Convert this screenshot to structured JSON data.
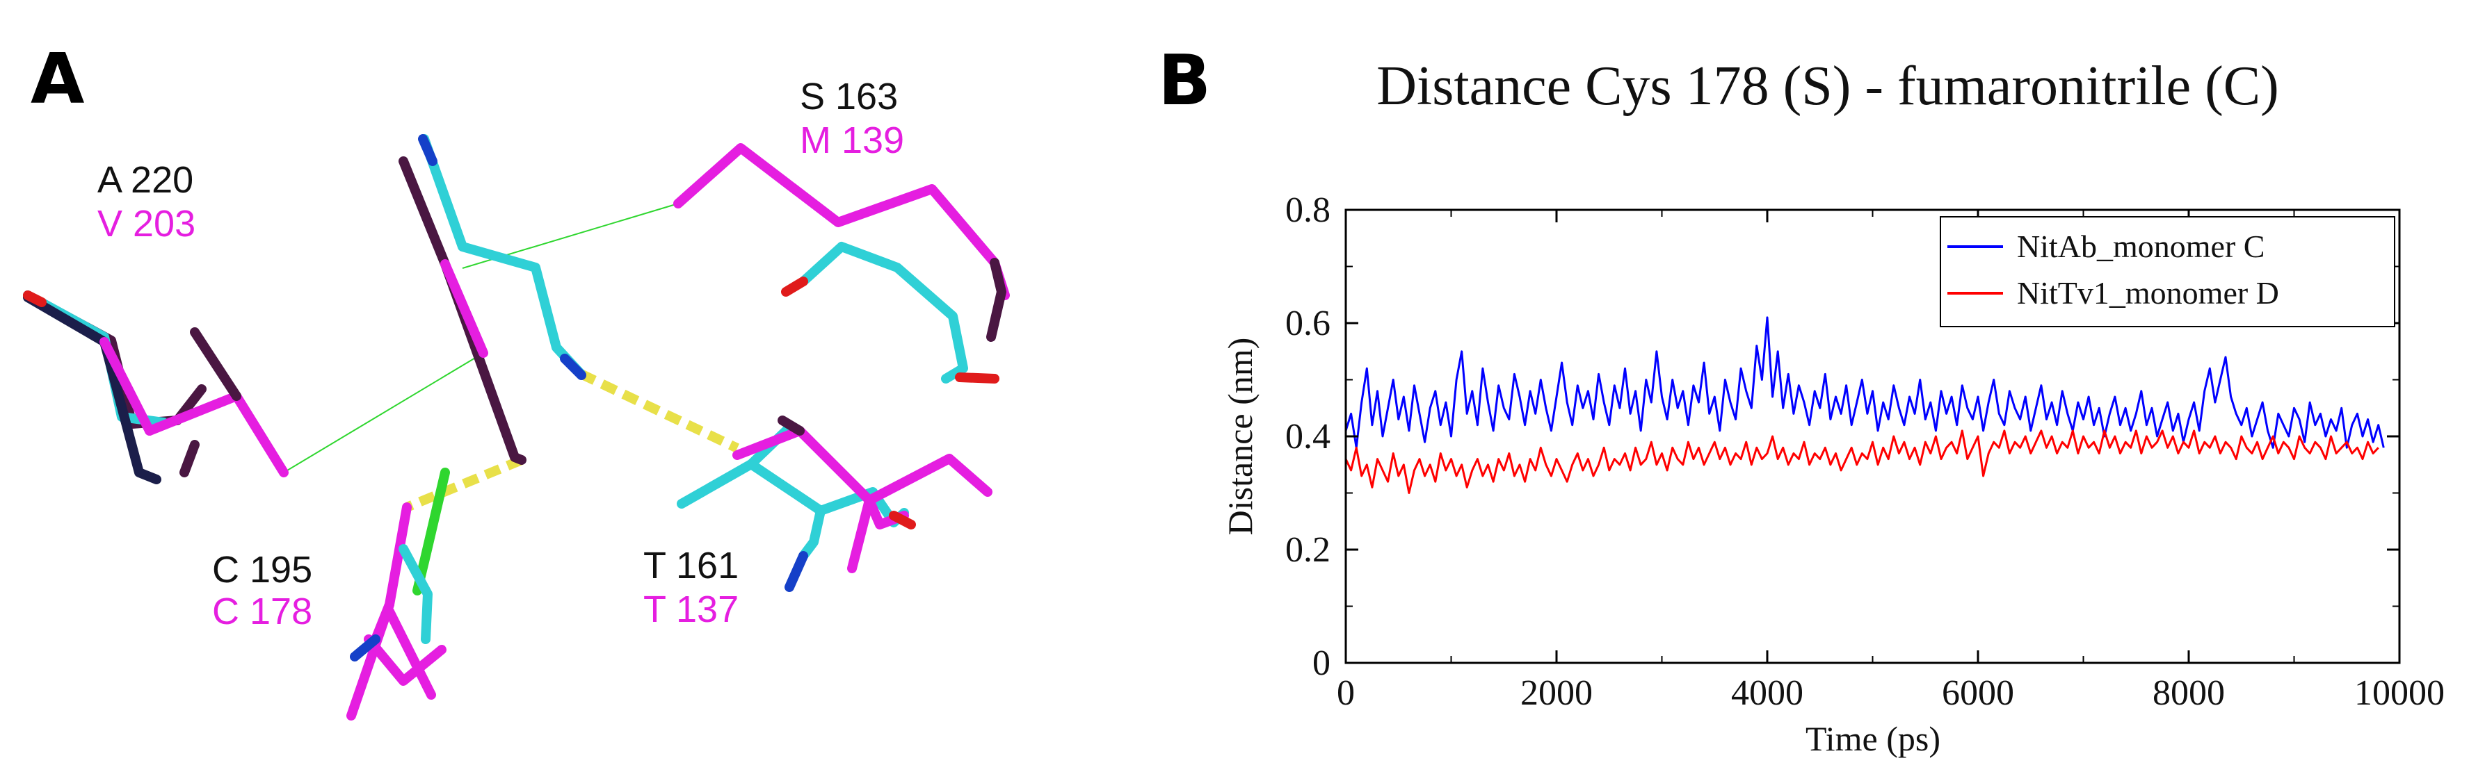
{
  "panelA": {
    "letter": "A",
    "residues": [
      {
        "primary": "A 220",
        "secondary": "V 203"
      },
      {
        "primary": "S 163",
        "secondary": "M 139"
      },
      {
        "primary": "C 195",
        "secondary": "C 178"
      },
      {
        "primary": "T 161",
        "secondary": "T 137"
      }
    ]
  },
  "panelB": {
    "letter": "B"
  },
  "colors": {
    "cyan": "#2fd0d6",
    "magenta": "#e51ee0",
    "darkPurple": "#4a1742",
    "red": "#e01b1b",
    "blue": "#1540c8",
    "green": "#2fd62f",
    "yellow": "#e8e049",
    "series1": "#0000ff",
    "series2": "#ff0000"
  },
  "chart_data": {
    "type": "line",
    "title": "Distance Cys 178 (S) - fumaronitrile (C)",
    "xlabel": "Time (ps)",
    "ylabel": "Distance  (nm)",
    "xlim": [
      0,
      10000
    ],
    "ylim": [
      0,
      0.8
    ],
    "xticks": [
      0,
      2000,
      4000,
      6000,
      8000,
      10000
    ],
    "yticks": [
      0,
      0.2,
      0.4,
      0.6,
      0.8
    ],
    "xtick_labels": [
      "0",
      "2000",
      "4000",
      "6000",
      "8000",
      "10000"
    ],
    "ytick_labels": [
      "0",
      "0.2",
      "0.4",
      "0.6",
      "0.8"
    ],
    "grid": false,
    "legend_position": "top-right",
    "series": [
      {
        "name": "NitAb_monomer C",
        "color": "#0000ff",
        "step": 50,
        "values": [
          0.41,
          0.44,
          0.38,
          0.46,
          0.52,
          0.42,
          0.48,
          0.4,
          0.45,
          0.5,
          0.43,
          0.47,
          0.41,
          0.49,
          0.44,
          0.39,
          0.45,
          0.48,
          0.42,
          0.46,
          0.4,
          0.5,
          0.55,
          0.44,
          0.48,
          0.42,
          0.52,
          0.46,
          0.41,
          0.49,
          0.45,
          0.43,
          0.51,
          0.47,
          0.42,
          0.48,
          0.44,
          0.5,
          0.45,
          0.41,
          0.47,
          0.53,
          0.46,
          0.42,
          0.49,
          0.45,
          0.48,
          0.43,
          0.51,
          0.46,
          0.42,
          0.49,
          0.45,
          0.52,
          0.44,
          0.48,
          0.41,
          0.5,
          0.46,
          0.55,
          0.47,
          0.43,
          0.5,
          0.45,
          0.48,
          0.42,
          0.49,
          0.46,
          0.53,
          0.44,
          0.47,
          0.41,
          0.5,
          0.46,
          0.43,
          0.52,
          0.48,
          0.45,
          0.56,
          0.5,
          0.61,
          0.47,
          0.55,
          0.45,
          0.51,
          0.44,
          0.49,
          0.46,
          0.42,
          0.48,
          0.45,
          0.51,
          0.43,
          0.47,
          0.44,
          0.49,
          0.42,
          0.46,
          0.5,
          0.44,
          0.48,
          0.41,
          0.46,
          0.43,
          0.49,
          0.45,
          0.42,
          0.47,
          0.44,
          0.5,
          0.43,
          0.46,
          0.41,
          0.48,
          0.44,
          0.47,
          0.42,
          0.49,
          0.45,
          0.43,
          0.47,
          0.41,
          0.46,
          0.5,
          0.44,
          0.42,
          0.48,
          0.45,
          0.43,
          0.47,
          0.41,
          0.45,
          0.49,
          0.43,
          0.46,
          0.42,
          0.48,
          0.44,
          0.41,
          0.46,
          0.43,
          0.47,
          0.42,
          0.45,
          0.4,
          0.44,
          0.47,
          0.42,
          0.45,
          0.41,
          0.44,
          0.48,
          0.42,
          0.45,
          0.4,
          0.43,
          0.46,
          0.41,
          0.44,
          0.39,
          0.43,
          0.46,
          0.41,
          0.48,
          0.52,
          0.46,
          0.5,
          0.54,
          0.47,
          0.44,
          0.42,
          0.45,
          0.4,
          0.43,
          0.46,
          0.41,
          0.38,
          0.44,
          0.42,
          0.4,
          0.45,
          0.43,
          0.39,
          0.46,
          0.42,
          0.44,
          0.4,
          0.43,
          0.41,
          0.45,
          0.38,
          0.42,
          0.44,
          0.4,
          0.43,
          0.39,
          0.42,
          0.38
        ]
      },
      {
        "name": "NitTv1_monomer D",
        "color": "#ff0000",
        "step": 50,
        "values": [
          0.36,
          0.34,
          0.38,
          0.33,
          0.35,
          0.31,
          0.36,
          0.34,
          0.32,
          0.37,
          0.33,
          0.35,
          0.3,
          0.34,
          0.36,
          0.33,
          0.35,
          0.32,
          0.37,
          0.34,
          0.36,
          0.33,
          0.35,
          0.31,
          0.34,
          0.36,
          0.33,
          0.35,
          0.32,
          0.36,
          0.34,
          0.37,
          0.33,
          0.35,
          0.32,
          0.36,
          0.34,
          0.38,
          0.35,
          0.33,
          0.36,
          0.34,
          0.32,
          0.35,
          0.37,
          0.34,
          0.36,
          0.33,
          0.35,
          0.38,
          0.34,
          0.36,
          0.35,
          0.37,
          0.34,
          0.38,
          0.35,
          0.36,
          0.39,
          0.35,
          0.37,
          0.34,
          0.38,
          0.36,
          0.35,
          0.39,
          0.36,
          0.38,
          0.35,
          0.37,
          0.39,
          0.36,
          0.38,
          0.35,
          0.37,
          0.36,
          0.39,
          0.35,
          0.38,
          0.36,
          0.37,
          0.4,
          0.36,
          0.38,
          0.35,
          0.37,
          0.36,
          0.39,
          0.35,
          0.37,
          0.36,
          0.38,
          0.35,
          0.37,
          0.34,
          0.36,
          0.38,
          0.35,
          0.37,
          0.36,
          0.39,
          0.35,
          0.38,
          0.36,
          0.4,
          0.37,
          0.39,
          0.36,
          0.38,
          0.35,
          0.39,
          0.37,
          0.4,
          0.36,
          0.38,
          0.39,
          0.37,
          0.41,
          0.36,
          0.38,
          0.4,
          0.33,
          0.37,
          0.39,
          0.38,
          0.41,
          0.37,
          0.39,
          0.38,
          0.4,
          0.37,
          0.39,
          0.41,
          0.38,
          0.4,
          0.37,
          0.39,
          0.38,
          0.41,
          0.37,
          0.4,
          0.38,
          0.39,
          0.37,
          0.41,
          0.38,
          0.4,
          0.37,
          0.39,
          0.38,
          0.41,
          0.37,
          0.4,
          0.38,
          0.39,
          0.41,
          0.38,
          0.4,
          0.37,
          0.39,
          0.38,
          0.41,
          0.37,
          0.39,
          0.38,
          0.4,
          0.37,
          0.39,
          0.38,
          0.36,
          0.4,
          0.38,
          0.37,
          0.39,
          0.36,
          0.38,
          0.4,
          0.37,
          0.39,
          0.38,
          0.36,
          0.4,
          0.38,
          0.37,
          0.39,
          0.38,
          0.36,
          0.4,
          0.37,
          0.38,
          0.39,
          0.37,
          0.38,
          0.36,
          0.39,
          0.37,
          0.38
        ]
      }
    ]
  }
}
